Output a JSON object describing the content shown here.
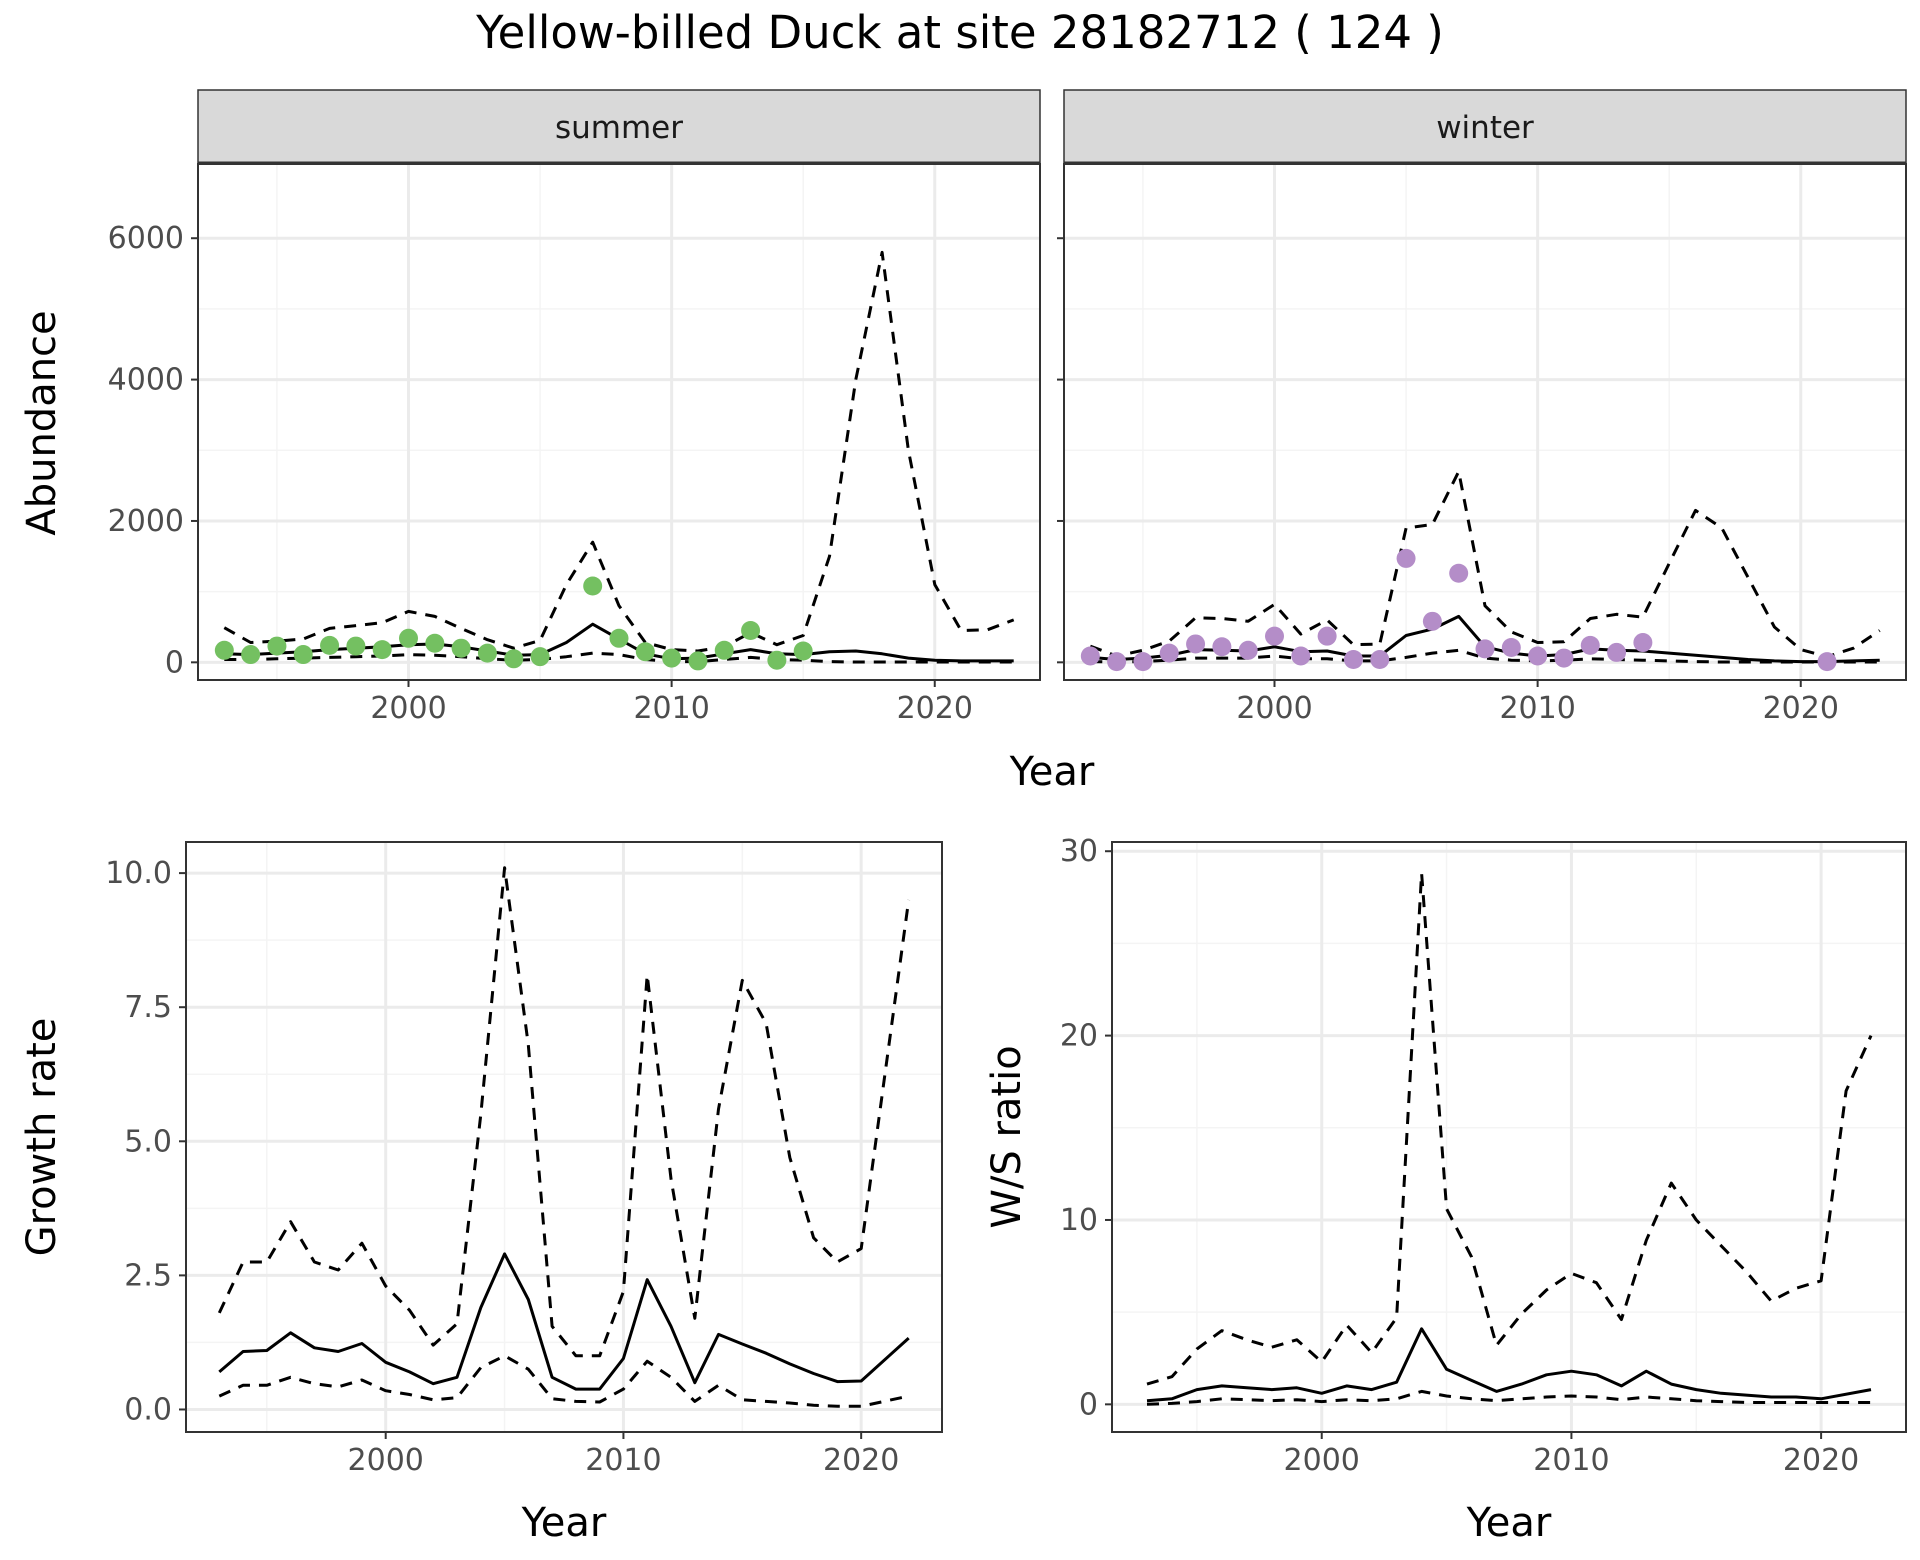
{
  "title": "Yellow-billed Duck at site 28182712 ( 124 )",
  "colors": {
    "summer_points": "#74c061",
    "winter_points": "#b48dc8",
    "line": "#000000",
    "strip_fill": "#d9d9d9",
    "grid_major": "#ebebeb",
    "grid_minor": "#f4f4f4"
  },
  "chart_data": [
    {
      "type": "line",
      "panel": "summer",
      "facet_label": "summer",
      "xlabel": "Year",
      "ylabel": "Abundance",
      "xlim": [
        1992,
        2024
      ],
      "ylim": [
        -250,
        7050
      ],
      "xticks": [
        2000,
        2010,
        2020
      ],
      "yticks": [
        0,
        2000,
        4000,
        6000
      ],
      "series": [
        {
          "style": "solid",
          "x": [
            1993,
            1994,
            1995,
            1996,
            1997,
            1998,
            1999,
            2000,
            2001,
            2002,
            2003,
            2004,
            2005,
            2006,
            2007,
            2008,
            2009,
            2010,
            2011,
            2012,
            2013,
            2014,
            2015,
            2016,
            2017,
            2018,
            2019,
            2020,
            2021,
            2022,
            2023
          ],
          "values": [
            120,
            110,
            130,
            150,
            180,
            200,
            220,
            250,
            260,
            220,
            160,
            100,
            110,
            280,
            540,
            330,
            120,
            50,
            60,
            120,
            180,
            120,
            110,
            150,
            160,
            120,
            60,
            30,
            20,
            20,
            20
          ]
        },
        {
          "style": "dashed",
          "x": [
            1993,
            1994,
            1995,
            1996,
            1997,
            1998,
            1999,
            2000,
            2001,
            2002,
            2003,
            2004,
            2005,
            2006,
            2007,
            2008,
            2009,
            2010,
            2011,
            2012,
            2013,
            2014,
            2015,
            2016,
            2017,
            2018,
            2019,
            2020,
            2021,
            2022,
            2023
          ],
          "values": [
            490,
            280,
            300,
            330,
            480,
            520,
            560,
            720,
            650,
            480,
            320,
            200,
            310,
            1100,
            1700,
            800,
            280,
            180,
            160,
            220,
            420,
            250,
            380,
            1500,
            4000,
            5800,
            3000,
            1100,
            450,
            460,
            600
          ]
        },
        {
          "style": "dashed",
          "x": [
            1993,
            1994,
            1995,
            1996,
            1997,
            1998,
            1999,
            2000,
            2001,
            2002,
            2003,
            2004,
            2005,
            2006,
            2007,
            2008,
            2009,
            2010,
            2011,
            2012,
            2013,
            2014,
            2015,
            2016,
            2017,
            2018,
            2019,
            2020,
            2021,
            2022,
            2023
          ],
          "values": [
            40,
            40,
            50,
            60,
            70,
            80,
            90,
            110,
            100,
            80,
            50,
            30,
            40,
            80,
            130,
            110,
            40,
            10,
            10,
            40,
            70,
            40,
            30,
            10,
            5,
            5,
            5,
            5,
            5,
            5,
            5
          ]
        },
        {
          "style": "points",
          "x": [
            1993,
            1994,
            1995,
            1996,
            1997,
            1998,
            1999,
            2000,
            2001,
            2002,
            2003,
            2004,
            2005,
            2007,
            2008,
            2009,
            2010,
            2011,
            2012,
            2013,
            2014,
            2015
          ],
          "values": [
            170,
            110,
            230,
            110,
            240,
            230,
            180,
            340,
            270,
            200,
            130,
            50,
            80,
            1080,
            340,
            150,
            60,
            20,
            170,
            450,
            30,
            160
          ]
        }
      ]
    },
    {
      "type": "line",
      "panel": "winter",
      "facet_label": "winter",
      "xlabel": "Year",
      "ylabel": "Abundance",
      "xlim": [
        1992,
        2024
      ],
      "ylim": [
        -250,
        7050
      ],
      "xticks": [
        2000,
        2010,
        2020
      ],
      "yticks": [
        0,
        2000,
        4000,
        6000
      ],
      "series": [
        {
          "style": "solid",
          "x": [
            1993,
            1994,
            1995,
            1996,
            1997,
            1998,
            1999,
            2000,
            2001,
            2002,
            2003,
            2004,
            2005,
            2006,
            2007,
            2008,
            2009,
            2010,
            2011,
            2012,
            2013,
            2014,
            2015,
            2016,
            2017,
            2018,
            2019,
            2020,
            2021,
            2022,
            2023
          ],
          "values": [
            70,
            40,
            60,
            100,
            180,
            170,
            160,
            220,
            150,
            160,
            90,
            90,
            380,
            470,
            650,
            220,
            130,
            90,
            110,
            190,
            170,
            160,
            130,
            100,
            70,
            40,
            20,
            10,
            10,
            20,
            30
          ]
        },
        {
          "style": "dashed",
          "x": [
            1993,
            1994,
            1995,
            1996,
            1997,
            1998,
            1999,
            2000,
            2001,
            2002,
            2003,
            2004,
            2005,
            2006,
            2007,
            2008,
            2009,
            2010,
            2011,
            2012,
            2013,
            2014,
            2015,
            2016,
            2017,
            2018,
            2019,
            2020,
            2021,
            2022,
            2023
          ],
          "values": [
            230,
            90,
            170,
            300,
            630,
            620,
            580,
            820,
            400,
            600,
            250,
            260,
            1900,
            1950,
            2700,
            800,
            430,
            280,
            290,
            620,
            680,
            640,
            1400,
            2150,
            1900,
            1200,
            500,
            180,
            80,
            200,
            450
          ]
        },
        {
          "style": "dashed",
          "x": [
            1993,
            1994,
            1995,
            1996,
            1997,
            1998,
            1999,
            2000,
            2001,
            2002,
            2003,
            2004,
            2005,
            2006,
            2007,
            2008,
            2009,
            2010,
            2011,
            2012,
            2013,
            2014,
            2015,
            2016,
            2017,
            2018,
            2019,
            2020,
            2021,
            2022,
            2023
          ],
          "values": [
            10,
            5,
            10,
            30,
            60,
            60,
            60,
            90,
            50,
            50,
            20,
            20,
            70,
            130,
            170,
            60,
            30,
            20,
            30,
            50,
            40,
            30,
            20,
            10,
            5,
            5,
            5,
            5,
            5,
            5,
            5
          ]
        },
        {
          "style": "points",
          "x": [
            1993,
            1994,
            1995,
            1996,
            1997,
            1998,
            1999,
            2000,
            2001,
            2002,
            2003,
            2004,
            2005,
            2006,
            2007,
            2008,
            2009,
            2010,
            2011,
            2012,
            2013,
            2014,
            2021
          ],
          "values": [
            90,
            10,
            10,
            130,
            260,
            220,
            170,
            370,
            90,
            370,
            40,
            40,
            1470,
            580,
            1260,
            190,
            210,
            90,
            60,
            240,
            140,
            280,
            10
          ]
        }
      ]
    },
    {
      "type": "line",
      "panel": "growth",
      "xlabel": "Year",
      "ylabel": "Growth rate",
      "xlim": [
        1991.6,
        2023.4
      ],
      "ylim": [
        -0.42,
        10.58
      ],
      "xticks": [
        2000,
        2010,
        2020
      ],
      "yticks": [
        "0.0",
        "2.5",
        "5.0",
        "7.5",
        "10.0"
      ],
      "series": [
        {
          "style": "solid",
          "x": [
            1993,
            1994,
            1995,
            1996,
            1997,
            1998,
            1999,
            2000,
            2001,
            2002,
            2003,
            2004,
            2005,
            2006,
            2007,
            2008,
            2009,
            2010,
            2011,
            2012,
            2013,
            2014,
            2015,
            2016,
            2017,
            2018,
            2019,
            2020,
            2022
          ],
          "values": [
            0.7,
            1.08,
            1.1,
            1.43,
            1.15,
            1.08,
            1.23,
            0.88,
            0.7,
            0.48,
            0.6,
            1.9,
            2.9,
            2.05,
            0.6,
            0.38,
            0.38,
            0.95,
            2.42,
            1.55,
            0.5,
            1.4,
            1.22,
            1.05,
            0.85,
            0.67,
            0.52,
            0.53,
            1.33
          ]
        },
        {
          "style": "dashed",
          "x": [
            1993,
            1994,
            1995,
            1996,
            1997,
            1998,
            1999,
            2000,
            2001,
            2002,
            2003,
            2004,
            2005,
            2006,
            2007,
            2008,
            2009,
            2010,
            2011,
            2012,
            2013,
            2014,
            2015,
            2016,
            2017,
            2018,
            2019,
            2020,
            2022
          ],
          "values": [
            1.8,
            2.75,
            2.75,
            3.5,
            2.75,
            2.6,
            3.1,
            2.3,
            1.85,
            1.2,
            1.6,
            5.5,
            10.1,
            6.8,
            1.55,
            1.0,
            1.0,
            2.2,
            8.1,
            4.3,
            1.7,
            5.6,
            8.0,
            7.2,
            4.7,
            3.2,
            2.75,
            3.0,
            9.5
          ]
        },
        {
          "style": "dashed",
          "x": [
            1993,
            1994,
            1995,
            1996,
            1997,
            1998,
            1999,
            2000,
            2001,
            2002,
            2003,
            2004,
            2005,
            2006,
            2007,
            2008,
            2009,
            2010,
            2011,
            2012,
            2013,
            2014,
            2015,
            2016,
            2017,
            2018,
            2019,
            2020,
            2022
          ],
          "values": [
            0.25,
            0.45,
            0.45,
            0.6,
            0.48,
            0.42,
            0.55,
            0.35,
            0.28,
            0.18,
            0.22,
            0.78,
            1.0,
            0.75,
            0.2,
            0.15,
            0.14,
            0.38,
            0.9,
            0.6,
            0.15,
            0.45,
            0.18,
            0.15,
            0.12,
            0.08,
            0.06,
            0.06,
            0.25
          ]
        }
      ]
    },
    {
      "type": "line",
      "panel": "ratio",
      "xlabel": "Year",
      "ylabel": "W/S ratio",
      "xlim": [
        1991.6,
        2023.4
      ],
      "ylim": [
        -1.5,
        30.5
      ],
      "xticks": [
        2000,
        2010,
        2020
      ],
      "yticks": [
        0,
        10,
        20,
        30
      ],
      "series": [
        {
          "style": "solid",
          "x": [
            1993,
            1994,
            1995,
            1996,
            1997,
            1998,
            1999,
            2000,
            2001,
            2002,
            2003,
            2004,
            2005,
            2006,
            2007,
            2008,
            2009,
            2010,
            2011,
            2012,
            2013,
            2014,
            2015,
            2016,
            2017,
            2018,
            2019,
            2020,
            2022
          ],
          "values": [
            0.2,
            0.3,
            0.8,
            1.0,
            0.9,
            0.8,
            0.9,
            0.6,
            1.0,
            0.8,
            1.2,
            4.1,
            1.9,
            1.3,
            0.7,
            1.1,
            1.6,
            1.8,
            1.6,
            1.0,
            1.8,
            1.1,
            0.8,
            0.6,
            0.5,
            0.4,
            0.4,
            0.3,
            0.8
          ]
        },
        {
          "style": "dashed",
          "x": [
            1993,
            1994,
            1995,
            1996,
            1997,
            1998,
            1999,
            2000,
            2001,
            2002,
            2003,
            2004,
            2005,
            2006,
            2007,
            2008,
            2009,
            2010,
            2011,
            2012,
            2013,
            2014,
            2015,
            2016,
            2017,
            2018,
            2019,
            2020,
            2021,
            2022
          ],
          "values": [
            1.1,
            1.5,
            3.0,
            4.0,
            3.5,
            3.1,
            3.5,
            2.3,
            4.3,
            2.8,
            4.7,
            28.8,
            10.6,
            8.0,
            3.2,
            4.9,
            6.2,
            7.1,
            6.6,
            4.6,
            8.9,
            12.0,
            10.0,
            8.6,
            7.2,
            5.6,
            6.3,
            6.7,
            17.0,
            20.0
          ]
        },
        {
          "style": "dashed",
          "x": [
            1993,
            1994,
            1995,
            1996,
            1997,
            1998,
            1999,
            2000,
            2001,
            2002,
            2003,
            2004,
            2005,
            2006,
            2007,
            2008,
            2009,
            2010,
            2011,
            2012,
            2013,
            2014,
            2015,
            2016,
            2017,
            2018,
            2019,
            2020,
            2022
          ],
          "values": [
            0.0,
            0.05,
            0.15,
            0.3,
            0.25,
            0.2,
            0.25,
            0.15,
            0.25,
            0.2,
            0.3,
            0.7,
            0.45,
            0.3,
            0.2,
            0.3,
            0.4,
            0.45,
            0.4,
            0.25,
            0.4,
            0.3,
            0.2,
            0.15,
            0.1,
            0.1,
            0.1,
            0.1,
            0.1
          ]
        }
      ]
    }
  ]
}
